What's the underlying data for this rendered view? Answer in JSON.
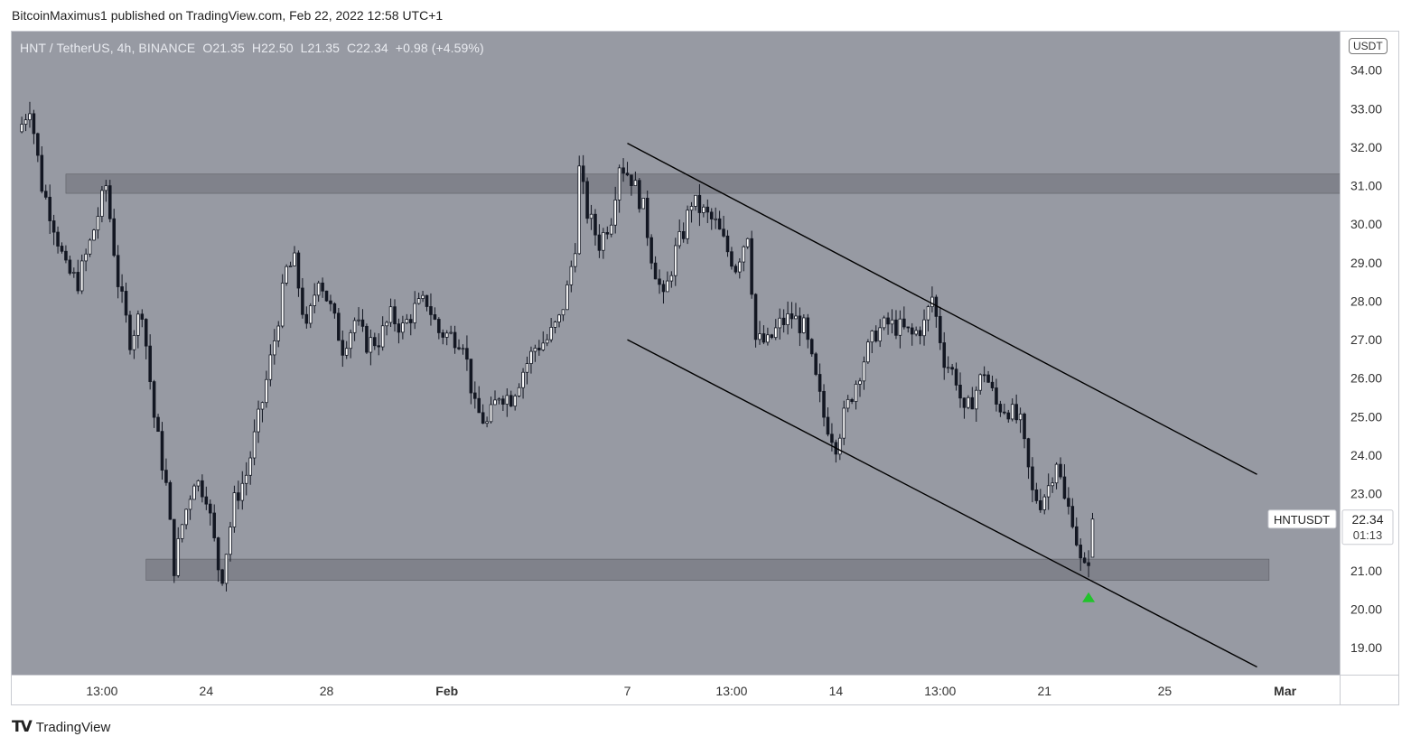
{
  "header": {
    "published": "BitcoinMaximus1 published on TradingView.com, Feb 22, 2022 12:58 UTC+1"
  },
  "legend": {
    "symbol": "HNT / TetherUS, 4h, BINANCE",
    "o_label": "O",
    "o": "21.35",
    "h_label": "H",
    "h": "22.50",
    "l_label": "L",
    "l": "21.35",
    "c_label": "C",
    "c": "22.34",
    "change": "+0.98 (+4.59%)"
  },
  "price_scale": {
    "currency": "USDT"
  },
  "price_label": {
    "symbol": "HNTUSDT",
    "price": "22.34",
    "countdown": "01:13"
  },
  "footer": {
    "brand": "TradingView"
  },
  "colors": {
    "background": "#979aa3",
    "axis_bg": "#ffffff",
    "candle_up": "#ffffff",
    "candle_down": "#131722",
    "zone": "#6e7079",
    "channel": "#000000",
    "arrow": "#21c32b"
  },
  "chart_data": {
    "type": "candlestick",
    "ylim": [
      18.3,
      35.0
    ],
    "yticks": [
      19,
      20,
      21,
      22,
      23,
      24,
      25,
      26,
      27,
      28,
      29,
      30,
      31,
      32,
      33,
      34
    ],
    "ytick_labels": [
      "19.00",
      "20.00",
      "21.00",
      "22.00",
      "23.00",
      "24.00",
      "25.00",
      "26.00",
      "27.00",
      "28.00",
      "29.00",
      "30.00",
      "31.00",
      "32.00",
      "33.00",
      "34.00"
    ],
    "xticks": [
      {
        "label": "13:00",
        "bar": 20
      },
      {
        "label": "24",
        "bar": 46
      },
      {
        "label": "28",
        "bar": 76
      },
      {
        "label": "Feb",
        "bar": 106
      },
      {
        "label": "7",
        "bar": 151
      },
      {
        "label": "13:00",
        "bar": 177
      },
      {
        "label": "14",
        "bar": 203
      },
      {
        "label": "13:00",
        "bar": 229
      },
      {
        "label": "21",
        "bar": 255
      },
      {
        "label": "25",
        "bar": 285
      },
      {
        "label": "Mar",
        "bar": 315
      }
    ],
    "price_anchors": [
      [
        0,
        32.6
      ],
      [
        2,
        33.1
      ],
      [
        5,
        31.0
      ],
      [
        8,
        30.0
      ],
      [
        11,
        28.8
      ],
      [
        14,
        28.5
      ],
      [
        17,
        29.5
      ],
      [
        21,
        31.0
      ],
      [
        24,
        28.5
      ],
      [
        27,
        27.0
      ],
      [
        30,
        27.8
      ],
      [
        33,
        25.0
      ],
      [
        36,
        23.2
      ],
      [
        38,
        21.1
      ],
      [
        40,
        22.2
      ],
      [
        43,
        23.4
      ],
      [
        46,
        23.0
      ],
      [
        49,
        21.1
      ],
      [
        50,
        20.9
      ],
      [
        53,
        22.8
      ],
      [
        56,
        23.5
      ],
      [
        60,
        25.4
      ],
      [
        63,
        27.0
      ],
      [
        66,
        28.8
      ],
      [
        68,
        29.0
      ],
      [
        71,
        27.2
      ],
      [
        74,
        28.7
      ],
      [
        77,
        27.8
      ],
      [
        80,
        26.8
      ],
      [
        83,
        27.5
      ],
      [
        86,
        26.9
      ],
      [
        89,
        27.0
      ],
      [
        92,
        27.6
      ],
      [
        95,
        27.3
      ],
      [
        98,
        27.8
      ],
      [
        101,
        28.0
      ],
      [
        104,
        27.2
      ],
      [
        107,
        27.1
      ],
      [
        110,
        27.0
      ],
      [
        113,
        25.2
      ],
      [
        116,
        24.8
      ],
      [
        119,
        25.6
      ],
      [
        122,
        25.5
      ],
      [
        125,
        26.2
      ],
      [
        128,
        26.8
      ],
      [
        131,
        27.0
      ],
      [
        134,
        27.5
      ],
      [
        136,
        28.3
      ],
      [
        138,
        29.5
      ],
      [
        139,
        31.4
      ],
      [
        141,
        30.3
      ],
      [
        144,
        29.5
      ],
      [
        147,
        30.2
      ],
      [
        149,
        31.6
      ],
      [
        152,
        31.2
      ],
      [
        155,
        30.4
      ],
      [
        157,
        29.2
      ],
      [
        160,
        28.0
      ],
      [
        163,
        29.3
      ],
      [
        165,
        29.8
      ],
      [
        167,
        30.6
      ],
      [
        170,
        30.3
      ],
      [
        173,
        30.0
      ],
      [
        176,
        29.3
      ],
      [
        178,
        28.9
      ],
      [
        181,
        29.8
      ],
      [
        183,
        27.0
      ],
      [
        186,
        26.9
      ],
      [
        189,
        27.4
      ],
      [
        192,
        27.6
      ],
      [
        195,
        27.3
      ],
      [
        197,
        26.4
      ],
      [
        200,
        25.0
      ],
      [
        203,
        24.3
      ],
      [
        205,
        25.0
      ],
      [
        207,
        25.6
      ],
      [
        210,
        26.5
      ],
      [
        213,
        27.2
      ],
      [
        216,
        27.4
      ],
      [
        219,
        27.3
      ],
      [
        222,
        27.1
      ],
      [
        225,
        27.4
      ],
      [
        227,
        28.1
      ],
      [
        230,
        26.5
      ],
      [
        233,
        26.0
      ],
      [
        235,
        25.0
      ],
      [
        238,
        25.7
      ],
      [
        240,
        26.2
      ],
      [
        243,
        25.3
      ],
      [
        246,
        25.2
      ],
      [
        249,
        24.8
      ],
      [
        252,
        23.0
      ],
      [
        254,
        22.8
      ],
      [
        256,
        23.2
      ],
      [
        258,
        23.9
      ],
      [
        260,
        22.8
      ],
      [
        262,
        22.4
      ],
      [
        264,
        21.2
      ],
      [
        265,
        21.0
      ],
      [
        266,
        21.35
      ],
      [
        267,
        22.34
      ]
    ],
    "last_bar": 267,
    "bars_visible": [
      -2.5,
      328.6
    ],
    "last_candle": {
      "open": 21.35,
      "high": 22.5,
      "low": 21.35,
      "close": 22.34
    },
    "zones": [
      {
        "name": "resistance",
        "from_bar": 11,
        "to_bar": 330,
        "low": 30.8,
        "high": 31.3
      },
      {
        "name": "support",
        "from_bar": 31,
        "to_bar": 311,
        "low": 20.75,
        "high": 21.3
      }
    ],
    "channel_lines": [
      {
        "name": "upper",
        "from": [
          151,
          32.1
        ],
        "to": [
          308,
          23.5
        ]
      },
      {
        "name": "lower",
        "from": [
          151,
          27.0
        ],
        "to": [
          308,
          18.5
        ]
      }
    ],
    "marker": {
      "type": "arrow-up",
      "bar": 266,
      "price": 20.3
    }
  }
}
